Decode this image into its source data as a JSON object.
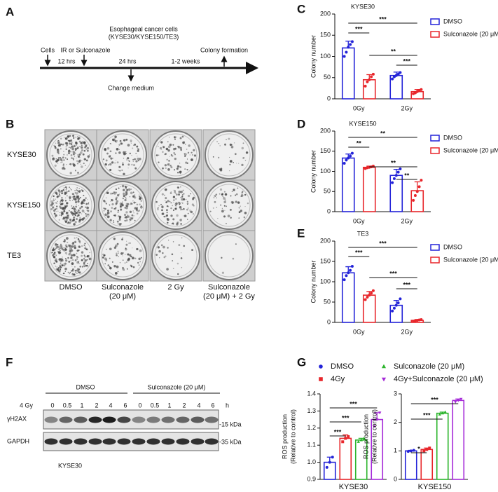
{
  "panels": [
    "A",
    "B",
    "C",
    "D",
    "E",
    "F",
    "G"
  ],
  "timeline": {
    "title": [
      "Esophageal cancer cells",
      "(KYSE30/KYSE150/TE3)"
    ],
    "events": [
      "Cells",
      "IR or Sulconazole",
      "Colony formation",
      "Change medium"
    ],
    "intervals": [
      "12 hrs",
      "24 hrs",
      "1-2 weeks"
    ]
  },
  "plates": {
    "rows": [
      "KYSE30",
      "KYSE150",
      "TE3"
    ],
    "columns": [
      [
        "DMSO"
      ],
      [
        "Sulconazole",
        "(20 μM)"
      ],
      [
        "2 Gy"
      ],
      [
        "Sulconazole",
        "(20 μM) + 2 Gy"
      ]
    ]
  },
  "blot": {
    "groups": [
      "DMSO",
      "Sulconazole (20 μM)"
    ],
    "dose_label": "4 Gy",
    "times": [
      "0",
      "0.5",
      "1",
      "2",
      "4",
      "6",
      "0",
      "0.5",
      "1",
      "2",
      "4",
      "6"
    ],
    "time_unit": "h",
    "proteins": [
      "γH2AX",
      "GAPDH"
    ],
    "markers": [
      "-15 kDa",
      "-35 kDa"
    ],
    "cell_line": "KYSE30"
  },
  "chart_data": [
    {
      "type": "bar",
      "title": "KYSE30",
      "ylabel": [
        "Colony number"
      ],
      "categories": [
        "0Gy",
        "2Gy"
      ],
      "ylim": [
        0,
        200
      ],
      "yticks": [
        0,
        50,
        100,
        150,
        200
      ],
      "legend": true,
      "series": [
        {
          "name": "DMSO",
          "color": "#2323d8",
          "marker": "circle",
          "values": [
            120,
            55
          ],
          "errors": [
            16,
            8
          ],
          "points": [
            [
              100,
              110,
              122,
              128,
              135
            ],
            [
              47,
              52,
              55,
              58,
              62
            ]
          ]
        },
        {
          "name": "Sulconazole (20 μM)",
          "color": "#e8262b",
          "marker": "circle",
          "values": [
            45,
            17
          ],
          "errors": [
            12,
            5
          ],
          "points": [
            [
              30,
              40,
              45,
              52,
              58
            ],
            [
              12,
              14,
              17,
              20,
              22
            ]
          ]
        }
      ],
      "significance": [
        "***",
        "***",
        "**",
        "***"
      ]
    },
    {
      "type": "bar",
      "title": "KYSE150",
      "ylabel": [
        "Colony number"
      ],
      "categories": [
        "0Gy",
        "2Gy"
      ],
      "ylim": [
        0,
        200
      ],
      "yticks": [
        0,
        50,
        100,
        150,
        200
      ],
      "legend": true,
      "series": [
        {
          "name": "DMSO",
          "color": "#2323d8",
          "marker": "circle",
          "values": [
            133,
            90
          ],
          "errors": [
            10,
            15
          ],
          "points": [
            [
              120,
              128,
              133,
              138,
              145
            ],
            [
              72,
              82,
              90,
              98,
              106
            ]
          ]
        },
        {
          "name": "Sulconazole (20 μM)",
          "color": "#e8262b",
          "marker": "circle",
          "values": [
            110,
            52
          ],
          "errors": [
            3,
            22
          ],
          "points": [
            [
              107,
              109,
              110,
              111,
              113
            ],
            [
              28,
              40,
              50,
              62,
              78
            ]
          ]
        }
      ],
      "significance": [
        "**",
        "**",
        "**",
        "**"
      ]
    },
    {
      "type": "bar",
      "title": "TE3",
      "ylabel": [
        "Colony number"
      ],
      "categories": [
        "0Gy",
        "2Gy"
      ],
      "ylim": [
        0,
        200
      ],
      "yticks": [
        0,
        50,
        100,
        150,
        200
      ],
      "legend": true,
      "series": [
        {
          "name": "DMSO",
          "color": "#2323d8",
          "marker": "circle",
          "values": [
            122,
            42
          ],
          "errors": [
            15,
            12
          ],
          "points": [
            [
              105,
              115,
              122,
              128,
              138
            ],
            [
              28,
              35,
              42,
              48,
              58
            ]
          ]
        },
        {
          "name": "Sulconazole (20 μM)",
          "color": "#e8262b",
          "marker": "circle",
          "values": [
            67,
            5
          ],
          "errors": [
            9,
            2
          ],
          "points": [
            [
              56,
              62,
              67,
              72,
              78
            ],
            [
              3,
              4,
              5,
              6,
              7
            ]
          ]
        }
      ],
      "significance": [
        "***",
        "***",
        "***",
        "***"
      ]
    },
    {
      "type": "bar",
      "ylabel": [
        "ROS production",
        "(Relative to control)"
      ],
      "categories": [
        "KYSE30"
      ],
      "ylim": [
        0.9,
        1.4
      ],
      "yticks": [
        0.9,
        {
          "value": 1,
          "label": "1.0"
        },
        1.1,
        1.2,
        1.3,
        1.4
      ],
      "legend": true,
      "series": [
        {
          "name": "DMSO",
          "color": "#2323d8",
          "marker": "circle",
          "values": [
            1.0
          ],
          "errors": [
            0.03
          ],
          "points": [
            [
              0.97,
              1.0,
              1.03
            ]
          ]
        },
        {
          "name": "4Gy",
          "color": "#e8262b",
          "marker": "square",
          "values": [
            1.14
          ],
          "errors": [
            0.02
          ],
          "points": [
            [
              1.12,
              1.14,
              1.15
            ]
          ]
        },
        {
          "name": "Sulconazole (20 μM)",
          "color": "#2db52d",
          "marker": "triangle-up",
          "values": [
            1.13
          ],
          "errors": [
            0.01
          ],
          "points": [
            [
              1.12,
              1.13,
              1.14
            ]
          ]
        },
        {
          "name": "4Gy+Sulconazole (20 μM)",
          "color": "#a52ad8",
          "marker": "triangle-down",
          "values": [
            1.25
          ],
          "errors": [
            0.04
          ],
          "points": [
            [
              1.21,
              1.25,
              1.29
            ]
          ]
        }
      ],
      "significance": [
        "***",
        "***",
        "***"
      ]
    },
    {
      "type": "bar",
      "ylabel": [
        "ROS production",
        "(Relative to control)"
      ],
      "categories": [
        "KYSE150"
      ],
      "ylim": [
        0,
        3
      ],
      "yticks": [
        0,
        1,
        2,
        3
      ],
      "legend": false,
      "series": [
        {
          "color": "#2323d8",
          "marker": "circle",
          "values": [
            1.0
          ],
          "errors": [
            0.02
          ],
          "points": [
            [
              0.98,
              1.0,
              1.02
            ]
          ]
        },
        {
          "color": "#e8262b",
          "marker": "square",
          "values": [
            1.05
          ],
          "errors": [
            0.05
          ],
          "points": [
            [
              1.0,
              1.05,
              1.1
            ]
          ]
        },
        {
          "color": "#2db52d",
          "marker": "triangle-up",
          "values": [
            2.32
          ],
          "errors": [
            0.04
          ],
          "points": [
            [
              2.28,
              2.32,
              2.36
            ]
          ]
        },
        {
          "color": "#a52ad8",
          "marker": "triangle-down",
          "values": [
            2.77
          ],
          "errors": [
            0.05
          ],
          "points": [
            [
              2.72,
              2.77,
              2.82
            ]
          ]
        }
      ],
      "significance": [
        "*",
        "***",
        "***"
      ]
    }
  ]
}
